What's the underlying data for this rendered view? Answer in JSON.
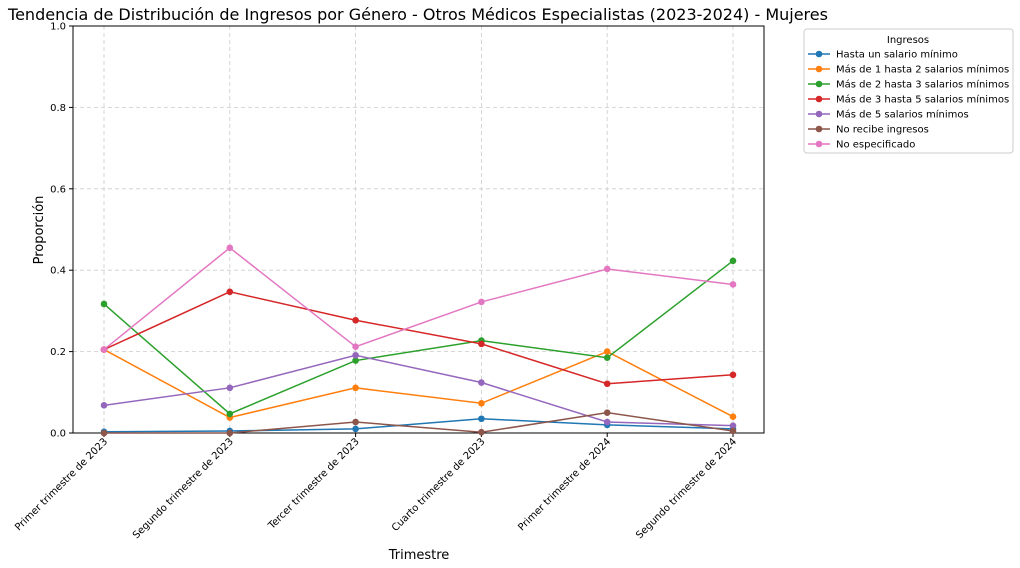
{
  "chart_data": {
    "type": "line",
    "title": "Tendencia de Distribución de Ingresos por Género - Otros Médicos Especialistas (2023-2024) - Mujeres",
    "xlabel": "Trimestre",
    "ylabel": "Proporción",
    "categories": [
      "Primer trimestre de 2023",
      "Segundo trimestre de 2023",
      "Tercer trimestre de 2023",
      "Cuarto trimestre de 2023",
      "Primer trimestre de 2024",
      "Segundo trimestre de 2024"
    ],
    "ylim": [
      0,
      1
    ],
    "yticks": [
      "0.0",
      "0.2",
      "0.4",
      "0.6",
      "0.8",
      "1.0"
    ],
    "grid": true,
    "legend_title": "Ingresos",
    "legend_position": "outside-top-right",
    "series": [
      {
        "name": "Hasta un salario mínimo",
        "color": "#1f77b4",
        "values": [
          0.003,
          0.005,
          0.01,
          0.035,
          0.02,
          0.01
        ]
      },
      {
        "name": "Más de 1 hasta 2 salarios mínimos",
        "color": "#ff7f0e",
        "values": [
          0.205,
          0.038,
          0.111,
          0.073,
          0.2,
          0.04
        ]
      },
      {
        "name": "Más de 2 hasta 3 salarios mínimos",
        "color": "#2ca02c",
        "values": [
          0.317,
          0.047,
          0.178,
          0.227,
          0.185,
          0.423
        ]
      },
      {
        "name": "Más de 3 hasta 5 salarios mínimos",
        "color": "#d62728",
        "values": [
          0.205,
          0.347,
          0.277,
          0.219,
          0.121,
          0.143
        ]
      },
      {
        "name": "Más de 5 salarios mínimos",
        "color": "#9467bd",
        "values": [
          0.068,
          0.111,
          0.191,
          0.124,
          0.027,
          0.018
        ]
      },
      {
        "name": "No recibe ingresos",
        "color": "#8c564b",
        "values": [
          0.0,
          0.0,
          0.027,
          0.002,
          0.05,
          0.005
        ]
      },
      {
        "name": "No especificado",
        "color": "#e377c2",
        "values": [
          0.205,
          0.455,
          0.212,
          0.322,
          0.403,
          0.365
        ]
      }
    ]
  }
}
